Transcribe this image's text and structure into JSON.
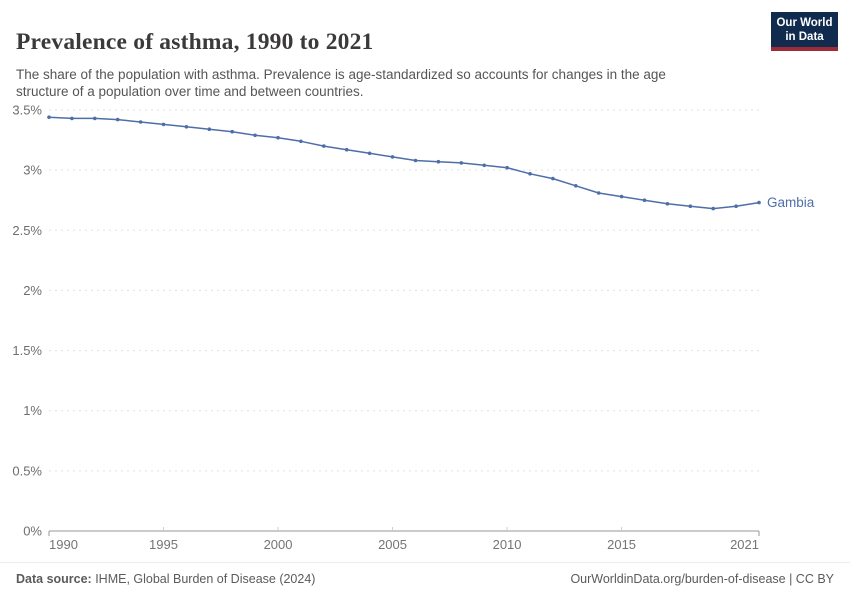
{
  "header": {
    "title": "Prevalence of asthma, 1990 to 2021",
    "logo": {
      "line1": "Our World",
      "line2": "in Data"
    }
  },
  "subtitle": "The share of the population with asthma. Prevalence is age-standardized so accounts for changes in the age structure of a population over time and between countries.",
  "chart_data": {
    "type": "line",
    "title": "Prevalence of asthma, 1990 to 2021",
    "xlabel": "",
    "ylabel": "",
    "xlim": [
      1990,
      2021
    ],
    "ylim": [
      0,
      3.5
    ],
    "grid": "horizontal-dashed",
    "legend_position": "end-of-line-label",
    "x": [
      1990,
      1991,
      1992,
      1993,
      1994,
      1995,
      1996,
      1997,
      1998,
      1999,
      2000,
      2001,
      2002,
      2003,
      2004,
      2005,
      2006,
      2007,
      2008,
      2009,
      2010,
      2011,
      2012,
      2013,
      2014,
      2015,
      2016,
      2017,
      2018,
      2019,
      2020,
      2021
    ],
    "series": [
      {
        "name": "Gambia",
        "unit": "%",
        "values": [
          3.44,
          3.43,
          3.43,
          3.42,
          3.4,
          3.38,
          3.36,
          3.34,
          3.32,
          3.29,
          3.27,
          3.24,
          3.2,
          3.17,
          3.14,
          3.11,
          3.08,
          3.07,
          3.06,
          3.04,
          3.02,
          2.97,
          2.93,
          2.87,
          2.81,
          2.78,
          2.75,
          2.72,
          2.7,
          2.68,
          2.7,
          2.73
        ]
      }
    ],
    "y_ticks": [
      {
        "value": 0,
        "label": "0%"
      },
      {
        "value": 0.5,
        "label": "0.5%"
      },
      {
        "value": 1,
        "label": "1%"
      },
      {
        "value": 1.5,
        "label": "1.5%"
      },
      {
        "value": 2,
        "label": "2%"
      },
      {
        "value": 2.5,
        "label": "2.5%"
      },
      {
        "value": 3,
        "label": "3%"
      },
      {
        "value": 3.5,
        "label": "3.5%"
      }
    ],
    "x_ticks": [
      {
        "value": 1990,
        "label": "1990"
      },
      {
        "value": 1995,
        "label": "1995"
      },
      {
        "value": 2000,
        "label": "2000"
      },
      {
        "value": 2005,
        "label": "2005"
      },
      {
        "value": 2010,
        "label": "2010"
      },
      {
        "value": 2015,
        "label": "2015"
      },
      {
        "value": 2021,
        "label": "2021"
      }
    ]
  },
  "colors": {
    "line": "#4e6ea9",
    "series_label": "#4e6ea9",
    "grid": "#e0e0e0",
    "axis": "#979797",
    "y_tick_label": "#6e6e6e",
    "x_tick_label": "#757575",
    "logo_navy": "#102b4e",
    "logo_red": "#9d2b38"
  },
  "footer": {
    "source_label": "Data source:",
    "source_text": " IHME, Global Burden of Disease (2024)",
    "credit": "OurWorldinData.org/burden-of-disease | CC BY"
  }
}
